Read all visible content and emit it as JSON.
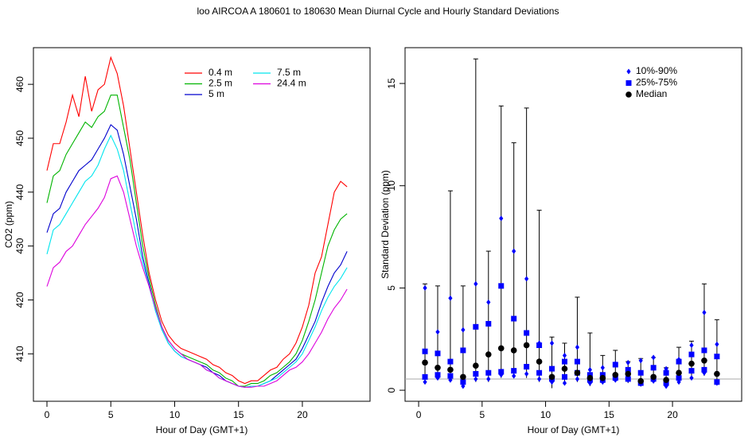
{
  "title": "loo   AIRCOA A   180601 to 180630   Mean Diurnal Cycle and Hourly Standard Deviations",
  "chart_data": [
    {
      "type": "line",
      "x_label": "Hour of Day (GMT+1)",
      "y_label": "CO2 (ppm)",
      "xlim": [
        -1.06,
        25.3
      ],
      "ylim": [
        401.2,
        466.8
      ],
      "xticks": [
        0,
        5,
        10,
        15,
        20
      ],
      "yticks": [
        410,
        420,
        430,
        440,
        450,
        460
      ],
      "x": [
        0,
        0.5,
        1,
        1.5,
        2,
        2.5,
        3,
        3.5,
        4,
        4.5,
        5,
        5.5,
        6,
        6.5,
        7,
        7.5,
        8,
        8.5,
        9,
        9.5,
        10,
        10.5,
        11,
        11.5,
        12,
        12.5,
        13,
        13.5,
        14,
        14.5,
        15,
        15.5,
        16,
        16.5,
        17,
        17.5,
        18,
        18.5,
        19,
        19.5,
        20,
        20.5,
        21,
        21.5,
        22,
        22.5,
        23,
        23.5
      ],
      "series": [
        {
          "name": "0.4 m",
          "color": "#ff0000",
          "values": [
            444,
            449,
            449,
            453,
            458,
            454,
            461.5,
            455,
            459,
            460,
            465,
            462,
            456,
            448,
            440,
            432,
            425,
            420,
            416,
            413.5,
            412,
            411,
            410.5,
            410,
            409.5,
            409,
            408,
            407.5,
            406.5,
            406,
            405,
            404.5,
            405,
            405,
            406,
            407,
            407.5,
            409,
            410,
            412,
            415,
            419,
            425,
            428,
            434,
            440,
            442,
            441
          ]
        },
        {
          "name": "2.5 m",
          "color": "#00b400",
          "values": [
            438,
            443,
            444,
            447,
            449,
            451,
            453,
            452,
            454,
            455,
            458,
            458,
            452,
            446,
            438,
            430,
            424,
            419,
            415,
            412.5,
            411,
            410,
            409.5,
            409,
            408.5,
            408,
            407,
            406.5,
            405.5,
            405,
            404,
            404,
            404.5,
            404.5,
            405,
            406,
            406.5,
            407.5,
            408.5,
            410,
            412.5,
            416,
            420,
            425,
            430,
            433,
            435,
            436
          ]
        },
        {
          "name": "5 m",
          "color": "#0000cd",
          "values": [
            432.5,
            436,
            437,
            440,
            442,
            444,
            445,
            446,
            448,
            450,
            452.5,
            451.5,
            447,
            441,
            435,
            428,
            423,
            418,
            414.5,
            412,
            410.5,
            409.5,
            409,
            408.5,
            408,
            407.5,
            406.5,
            406,
            405,
            404.5,
            404,
            403.8,
            404,
            404,
            404.5,
            405,
            406,
            407,
            408,
            409,
            411,
            413.5,
            416,
            419.5,
            422.5,
            425,
            426.5,
            429
          ]
        },
        {
          "name": "7.5 m",
          "color": "#00e5ee",
          "values": [
            428.5,
            433,
            434,
            436,
            438,
            440,
            442,
            443,
            445,
            448,
            450.5,
            448,
            444,
            438,
            432,
            427,
            422.5,
            418,
            414.5,
            412,
            410.5,
            409.5,
            409,
            408.5,
            408,
            407,
            406.5,
            405.5,
            405,
            404.5,
            404,
            403.8,
            404,
            404,
            404.5,
            405,
            405.5,
            406.5,
            407.5,
            408.5,
            410,
            412.5,
            415,
            418,
            420.5,
            422.5,
            424,
            426
          ]
        },
        {
          "name": "24.4 m",
          "color": "#dd00dd",
          "values": [
            422.5,
            426,
            427,
            429,
            430,
            432,
            434,
            435.5,
            437,
            439,
            442.5,
            443,
            440,
            435,
            430,
            426,
            422.5,
            418.5,
            415,
            412.5,
            411,
            410,
            409,
            408.5,
            408,
            407,
            406.5,
            405.5,
            405,
            404.5,
            404,
            403.8,
            403.8,
            404,
            404,
            404.5,
            405,
            406,
            407,
            407.5,
            408.5,
            410,
            412,
            414,
            416.5,
            418.5,
            420,
            422
          ]
        }
      ]
    },
    {
      "type": "errorbar",
      "x_label": "Hour of Day (GMT+1)",
      "y_label": "Standard Deviation (ppm)",
      "xlim": [
        -1.07,
        25.45
      ],
      "ylim": [
        -0.54,
        16.75
      ],
      "xticks": [
        0,
        5,
        10,
        15,
        20
      ],
      "yticks": [
        0,
        5,
        10,
        15
      ],
      "hline": 0.55,
      "x": [
        0.5,
        1.5,
        2.5,
        3.5,
        4.5,
        5.5,
        6.5,
        7.5,
        8.5,
        9.5,
        10.5,
        11.5,
        12.5,
        13.5,
        14.5,
        15.5,
        16.5,
        17.5,
        18.5,
        19.5,
        20.5,
        21.5,
        22.5,
        23.5
      ],
      "whiskers": {
        "color": "#000000",
        "high": [
          5.2,
          5.1,
          9.75,
          5.1,
          16.2,
          6.8,
          13.9,
          12.1,
          13.8,
          8.8,
          2.6,
          2.3,
          4.55,
          2.8,
          1.7,
          1.95,
          1.4,
          1.55,
          1.6,
          1.1,
          2.1,
          2.4,
          5.2,
          3.45
        ],
        "low": [
          0.3,
          0.5,
          0.4,
          0.1,
          0.4,
          0.4,
          0.6,
          0.6,
          0.6,
          0.4,
          0.1,
          0.25,
          0.4,
          0.2,
          0.3,
          0.4,
          0.35,
          0.2,
          0.35,
          0.15,
          0.3,
          0.5,
          0.7,
          0.3
        ]
      },
      "series": [
        {
          "name": "10%-90%",
          "color": "#0000ff",
          "marker": "diamond",
          "high": [
            5.0,
            2.85,
            4.5,
            2.95,
            5.2,
            4.3,
            8.4,
            6.8,
            5.45,
            2.3,
            2.3,
            1.7,
            2.1,
            1.0,
            1.1,
            1.3,
            1.35,
            1.45,
            1.6,
            1.05,
            1.5,
            2.2,
            3.8,
            2.25
          ],
          "low": [
            0.4,
            0.6,
            0.5,
            0.2,
            0.55,
            0.55,
            0.75,
            0.7,
            0.8,
            0.55,
            0.4,
            0.35,
            0.55,
            0.35,
            0.4,
            0.5,
            0.5,
            0.3,
            0.45,
            0.2,
            0.4,
            0.6,
            0.85,
            0.35
          ]
        },
        {
          "name": "25%-75%",
          "color": "#0000ff",
          "marker": "square",
          "high": [
            1.9,
            1.8,
            1.4,
            1.95,
            3.1,
            3.25,
            5.1,
            3.5,
            2.8,
            2.2,
            1.05,
            1.4,
            1.4,
            0.75,
            0.75,
            1.25,
            1.0,
            0.85,
            1.1,
            0.85,
            1.4,
            1.75,
            1.95,
            1.65
          ],
          "low": [
            0.65,
            0.75,
            0.7,
            0.4,
            0.8,
            0.85,
            0.9,
            0.95,
            1.15,
            0.85,
            0.55,
            0.65,
            0.85,
            0.5,
            0.5,
            0.6,
            0.55,
            0.35,
            0.55,
            0.35,
            0.6,
            0.95,
            1.0,
            0.4
          ]
        },
        {
          "name": "Median",
          "color": "#000000",
          "marker": "circle",
          "values": [
            1.35,
            1.1,
            1.0,
            0.65,
            1.2,
            1.75,
            2.05,
            1.95,
            2.2,
            1.4,
            0.65,
            1.05,
            0.85,
            0.6,
            0.6,
            0.75,
            0.8,
            0.45,
            0.65,
            0.5,
            0.85,
            1.3,
            1.45,
            0.8
          ]
        }
      ]
    }
  ]
}
